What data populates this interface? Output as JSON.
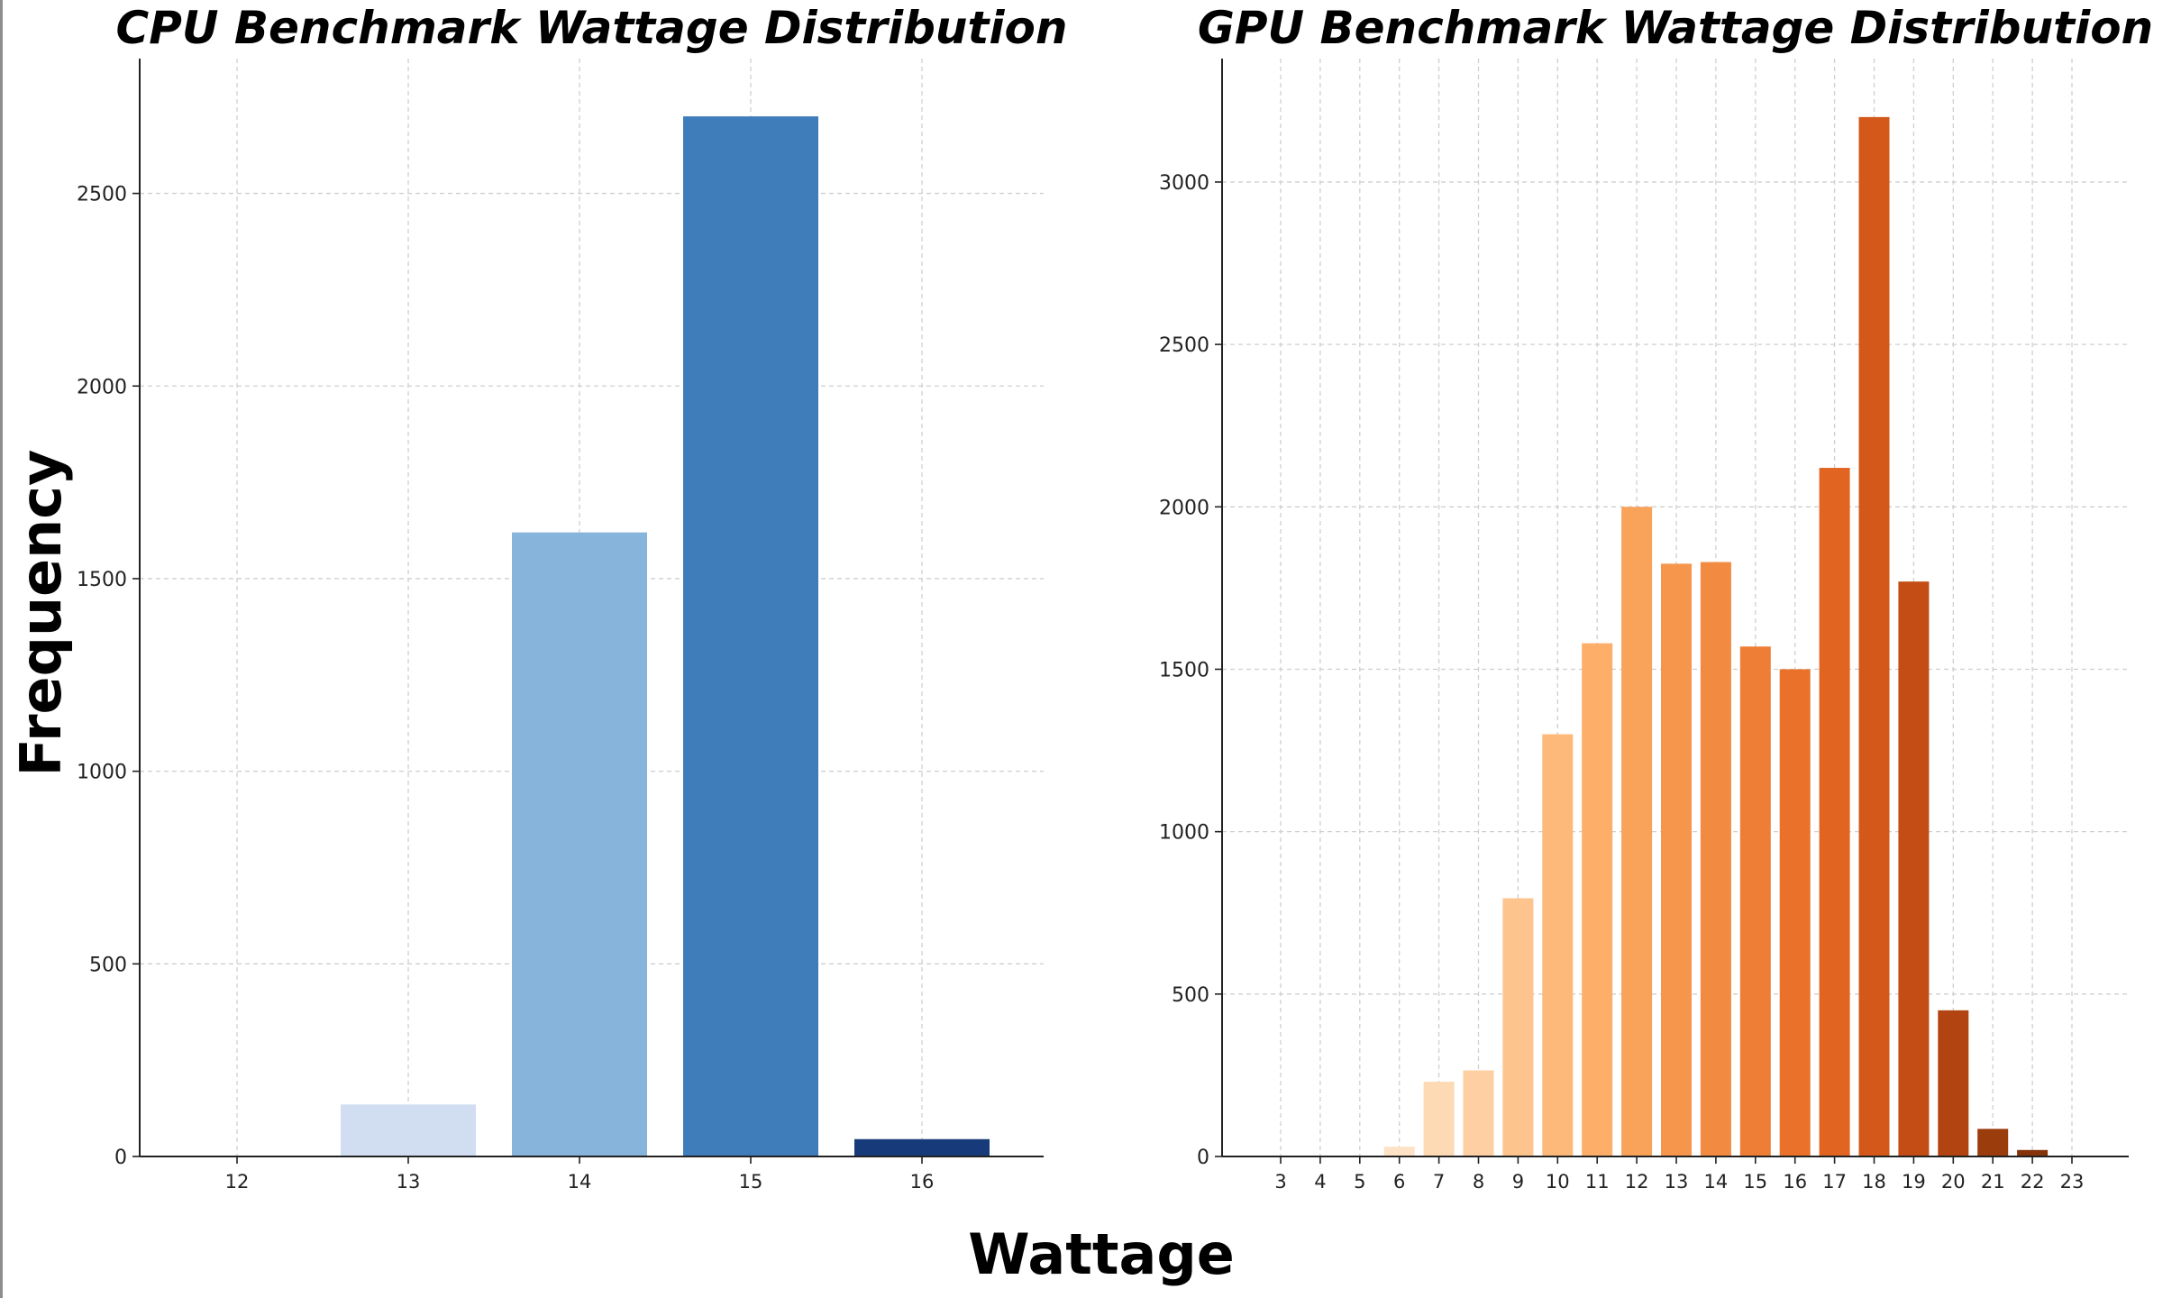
{
  "figure": {
    "xlabel": "Wattage",
    "ylabel": "Frequency"
  },
  "colors": {
    "grid": "#cfcfcf",
    "axis": "#222222",
    "text": "#222222",
    "title": "#000000"
  },
  "chart_data": [
    {
      "type": "bar",
      "title": "CPU Benchmark Wattage Distribution",
      "xlabel": "Wattage",
      "ylabel": "Frequency",
      "categories": [
        "12",
        "13",
        "14",
        "15",
        "16"
      ],
      "values": [
        0,
        135,
        1620,
        2700,
        45
      ],
      "colors": [
        "#f7fbff",
        "#d1def2",
        "#86b4da",
        "#3e7cba",
        "#173b7a"
      ],
      "ylim": [
        0,
        2850
      ],
      "yticks": [
        0,
        500,
        1000,
        1500,
        2000,
        2500
      ],
      "grid": true,
      "legend": "none"
    },
    {
      "type": "bar",
      "title": "GPU Benchmark Wattage Distribution",
      "xlabel": "Wattage",
      "ylabel": "Frequency",
      "categories": [
        "3",
        "4",
        "5",
        "6",
        "7",
        "8",
        "9",
        "10",
        "11",
        "12",
        "13",
        "14",
        "15",
        "16",
        "17",
        "18",
        "19",
        "20",
        "21",
        "22",
        "23"
      ],
      "values": [
        0,
        0,
        2,
        30,
        230,
        265,
        795,
        1300,
        1580,
        2000,
        1825,
        1830,
        1570,
        1500,
        2120,
        3200,
        1770,
        450,
        85,
        20,
        0
      ],
      "colors": [
        "#fff5eb",
        "#fff1e2",
        "#feead6",
        "#fde2c6",
        "#fdd9b4",
        "#fdcfa2",
        "#fdc48d",
        "#fdb97a",
        "#fdae68",
        "#f9a25a",
        "#f6964d",
        "#f28a41",
        "#ee7e35",
        "#e9712a",
        "#e16420",
        "#d45819",
        "#c34d14",
        "#b14410",
        "#9b3c0c",
        "#853308",
        "#702b06"
      ],
      "ylim": [
        0,
        3380
      ],
      "yticks": [
        0,
        500,
        1000,
        1500,
        2000,
        2500,
        3000
      ],
      "grid": true,
      "legend": "none"
    }
  ]
}
